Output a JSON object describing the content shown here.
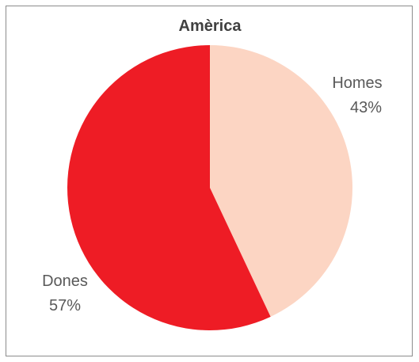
{
  "chart_data": {
    "type": "pie",
    "title": "Amèrica",
    "slices": [
      {
        "label": "Homes",
        "value": 43,
        "value_label": "43%",
        "color": "#fcd5c3"
      },
      {
        "label": "Dones",
        "value": 57,
        "value_label": "57%",
        "color": "#ee1c25"
      }
    ],
    "start_angle": "12 o'clock",
    "direction": "clockwise",
    "legend": "none",
    "labels": "outside"
  },
  "colors": {
    "border": "#8c8c8c",
    "label_text": "#595959",
    "title_text": "#404040"
  }
}
